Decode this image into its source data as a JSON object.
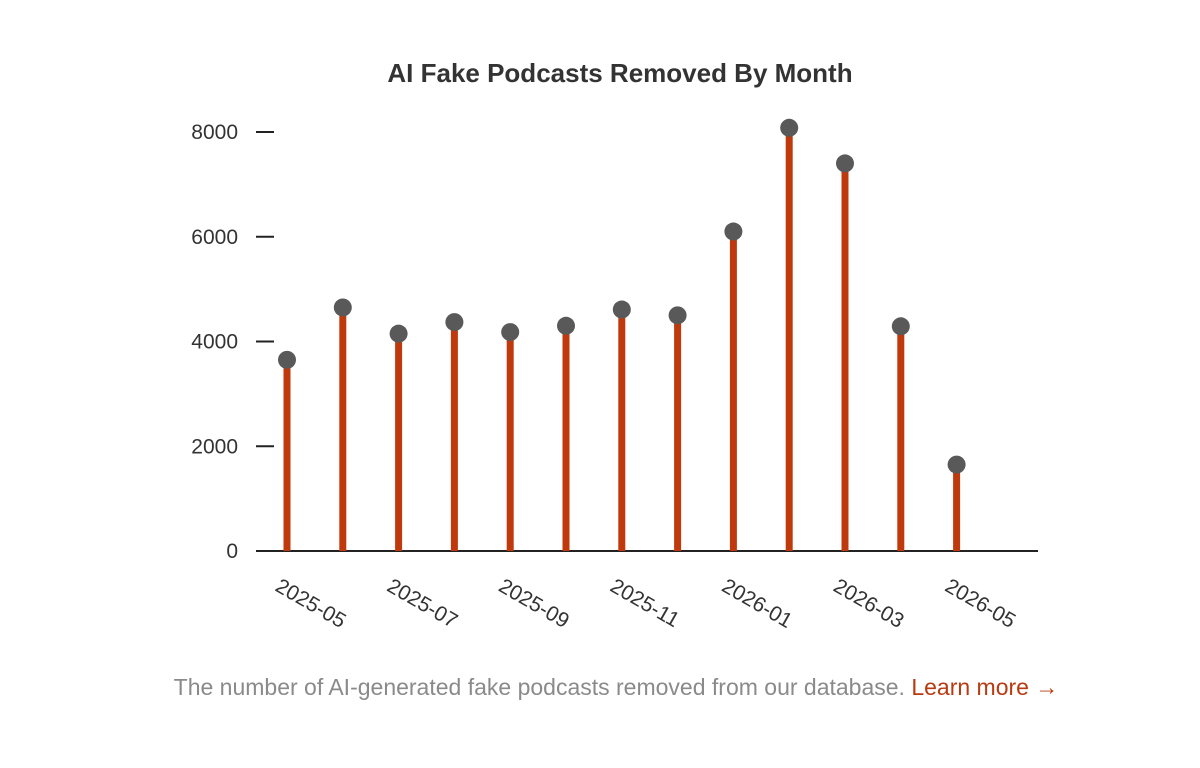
{
  "chart_data": {
    "type": "lollipop",
    "title": "AI Fake Podcasts Removed By Month",
    "xlabel": "",
    "ylabel": "",
    "categories": [
      "2025-05",
      "2025-06",
      "2025-07",
      "2025-08",
      "2025-09",
      "2025-10",
      "2025-11",
      "2025-12",
      "2026-01",
      "2026-02",
      "2026-03",
      "2026-04",
      "2026-05"
    ],
    "tick_labels": [
      "2025-05",
      "2025-07",
      "2025-09",
      "2025-11",
      "2026-01",
      "2026-03",
      "2026-05"
    ],
    "series": [
      {
        "points": [
          {
            "x": "2025-05",
            "y": 3650
          },
          {
            "x": "2025-06",
            "y": 4650
          },
          {
            "x": "2025-07",
            "y": 4150
          },
          {
            "x": "2025-08",
            "y": 4370
          },
          {
            "x": "2025-09",
            "y": 4180
          },
          {
            "x": "2025-10",
            "y": 4300
          },
          {
            "x": "2025-11",
            "y": 4610
          },
          {
            "x": "2025-12",
            "y": 4500
          },
          {
            "x": "2026-01",
            "y": 6100
          },
          {
            "x": "2026-02",
            "y": 8080
          },
          {
            "x": "2026-03",
            "y": 7400
          },
          {
            "x": "2026-04",
            "y": 4290
          },
          {
            "x": "2026-05",
            "y": 1650
          }
        ]
      }
    ],
    "yticks": [
      "0",
      "2000",
      "4000",
      "6000",
      "8000"
    ],
    "ylim": [
      0,
      8000
    ],
    "grid": false,
    "colors": {
      "stem": "#c0390c",
      "marker": "#595959",
      "axis": "#222222",
      "title": "#333333",
      "tick": "#333333"
    }
  },
  "caption": {
    "text": "The number of AI-generated fake podcasts removed from our database.",
    "link_label": "Learn more →",
    "link_color": "#b83a10"
  }
}
